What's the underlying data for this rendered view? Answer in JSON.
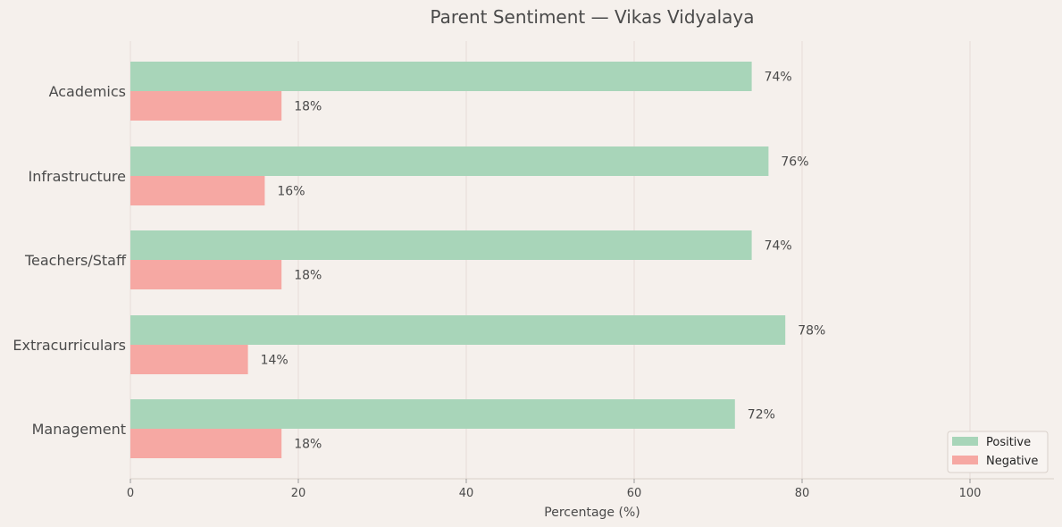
{
  "chart_data": {
    "type": "bar",
    "orientation": "horizontal",
    "title": "Parent Sentiment — Vikas Vidyalaya",
    "xlabel": "Percentage (%)",
    "ylabel": "",
    "xlim": [
      0,
      110
    ],
    "xticks": [
      0,
      20,
      40,
      60,
      80,
      100
    ],
    "grid": true,
    "legend_position": "bottom-right",
    "categories": [
      "Academics",
      "Infrastructure",
      "Teachers/Staff",
      "Extracurriculars",
      "Management"
    ],
    "series": [
      {
        "name": "Positive",
        "color": "#a8d5b9",
        "values": [
          74,
          76,
          74,
          78,
          72
        ],
        "labels": [
          "74%",
          "76%",
          "74%",
          "78%",
          "72%"
        ]
      },
      {
        "name": "Negative",
        "color": "#f6a8a3",
        "values": [
          18,
          16,
          18,
          14,
          18
        ],
        "labels": [
          "18%",
          "16%",
          "18%",
          "14%",
          "18%"
        ]
      }
    ]
  }
}
